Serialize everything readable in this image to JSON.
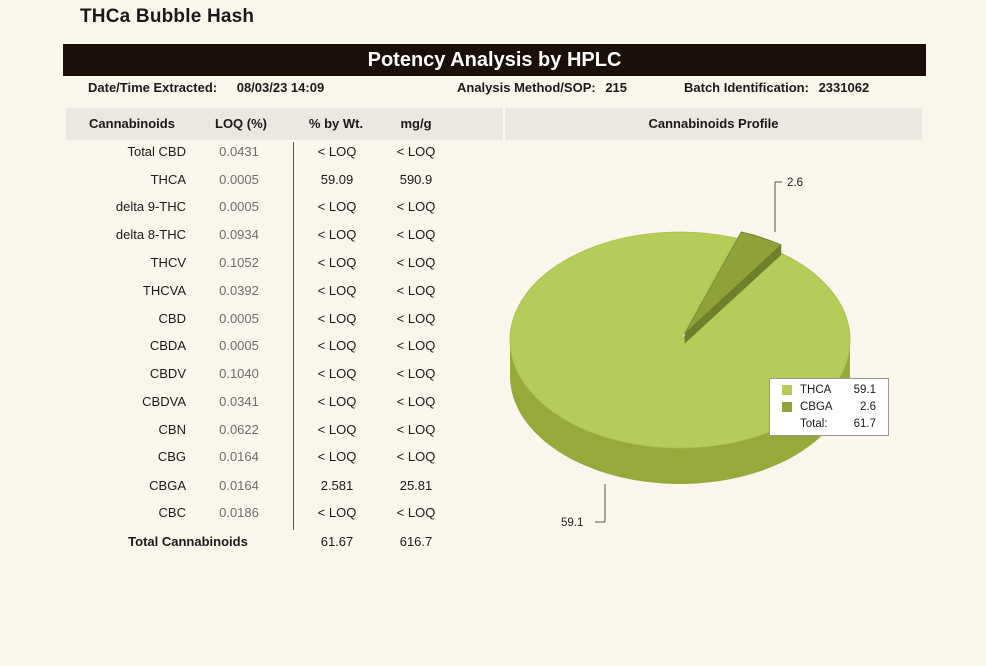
{
  "product_title": "THCa Bubble Hash",
  "banner_title": "Potency Analysis by HPLC",
  "meta": {
    "date_label": "Date/Time Extracted:",
    "date_value": "08/03/23  14:09",
    "method_label": "Analysis Method/SOP:",
    "method_value": "215",
    "batch_label": "Batch Identification:",
    "batch_value": "2331062"
  },
  "table": {
    "headers": [
      "Cannabinoids",
      "LOQ (%)",
      "% by Wt.",
      "mg/g"
    ],
    "rows": [
      {
        "name": "Total CBD",
        "loq": "0.0431",
        "pct": "< LOQ",
        "mg": "< LOQ"
      },
      {
        "name": "THCA",
        "loq": "0.0005",
        "pct": "59.09",
        "mg": "590.9"
      },
      {
        "name": "delta 9-THC",
        "loq": "0.0005",
        "pct": "< LOQ",
        "mg": "< LOQ"
      },
      {
        "name": "delta 8-THC",
        "loq": "0.0934",
        "pct": "< LOQ",
        "mg": "< LOQ"
      },
      {
        "name": "THCV",
        "loq": "0.1052",
        "pct": "< LOQ",
        "mg": "< LOQ"
      },
      {
        "name": "THCVA",
        "loq": "0.0392",
        "pct": "< LOQ",
        "mg": "< LOQ"
      },
      {
        "name": "CBD",
        "loq": "0.0005",
        "pct": "< LOQ",
        "mg": "< LOQ"
      },
      {
        "name": "CBDA",
        "loq": "0.0005",
        "pct": "< LOQ",
        "mg": "< LOQ"
      },
      {
        "name": "CBDV",
        "loq": "0.1040",
        "pct": "< LOQ",
        "mg": "< LOQ"
      },
      {
        "name": "CBDVA",
        "loq": "0.0341",
        "pct": "< LOQ",
        "mg": "< LOQ"
      },
      {
        "name": "CBN",
        "loq": "0.0622",
        "pct": "< LOQ",
        "mg": "< LOQ"
      },
      {
        "name": "CBG",
        "loq": "0.0164",
        "pct": "< LOQ",
        "mg": "< LOQ"
      },
      {
        "name": "CBGA",
        "loq": "0.0164",
        "pct": "2.581",
        "mg": "25.81"
      },
      {
        "name": "CBC",
        "loq": "0.0186",
        "pct": "< LOQ",
        "mg": "< LOQ"
      }
    ],
    "total": {
      "name": "Total Cannabinoids",
      "pct": "61.67",
      "mg": "616.7"
    }
  },
  "chart_title": "Cannabinoids Profile",
  "chart_data": {
    "type": "pie",
    "title": "Cannabinoids Profile",
    "slices": [
      {
        "label": "THCA",
        "value": 59.1,
        "display": "59.1",
        "color": "#b5cc58"
      },
      {
        "label": "CBGA",
        "value": 2.6,
        "display": "2.6",
        "color": "#8fa23a"
      }
    ],
    "total_label": "Total:",
    "total": "61.7",
    "legend_position": "right"
  },
  "colors": {
    "banner": "#1b0f0a",
    "header_band": "#ece8e1",
    "thca": "#b5cc58",
    "thca_side": "#97a93a",
    "cbga": "#8fa23a",
    "cbga_side": "#6f7f2b"
  }
}
